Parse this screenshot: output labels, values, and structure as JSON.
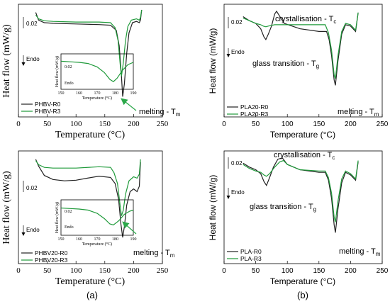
{
  "colors": {
    "series_dark": "#222222",
    "series_green": "#1f9a3a",
    "arrow": "#2ca84a",
    "axis": "#000000"
  },
  "panel_labels": [
    "(a)",
    "(b)"
  ],
  "chart_data": [
    {
      "id": "phbv",
      "type": "line",
      "ylabel": "Heat flow (mW/g)",
      "xlabel": "Temperature (°C)",
      "xlim": [
        0,
        250
      ],
      "xticks": [
        "0",
        "50",
        "100",
        "150",
        "200",
        "250"
      ],
      "scale_label": "0.02",
      "endo_label": "Endo",
      "annotations": [
        "melting - T",
        "m"
      ],
      "legend": "bottom-left",
      "series": [
        {
          "name": "PHBV-R0",
          "color": "#222222",
          "points": [
            [
              30,
              2
            ],
            [
              35,
              8
            ],
            [
              45,
              10
            ],
            [
              60,
              10.5
            ],
            [
              100,
              11
            ],
            [
              140,
              11.5
            ],
            [
              160,
              12
            ],
            [
              170,
              16
            ],
            [
              175,
              28
            ],
            [
              179,
              52
            ],
            [
              181,
              68
            ],
            [
              184,
              58
            ],
            [
              188,
              34
            ],
            [
              192,
              18
            ],
            [
              198,
              10
            ],
            [
              205,
              9
            ],
            [
              210,
              10
            ],
            [
              212,
              8
            ],
            [
              214,
              0
            ]
          ]
        },
        {
          "name": "PHBV-R3",
          "color": "#1f9a3a",
          "points": [
            [
              30,
              4
            ],
            [
              35,
              7
            ],
            [
              45,
              8.5
            ],
            [
              60,
              9
            ],
            [
              100,
              9.5
            ],
            [
              140,
              9.5
            ],
            [
              160,
              10
            ],
            [
              168,
              14
            ],
            [
              173,
              24
            ],
            [
              177,
              44
            ],
            [
              179,
              52
            ],
            [
              182,
              42
            ],
            [
              186,
              24
            ],
            [
              190,
              13
            ],
            [
              196,
              8
            ],
            [
              205,
              7
            ],
            [
              210,
              8
            ],
            [
              212,
              6
            ],
            [
              214,
              0
            ]
          ]
        }
      ],
      "inset": {
        "xlim": [
          150,
          190
        ],
        "xticks": [
          "150",
          "160",
          "170",
          "180",
          "190"
        ],
        "xlabel": "Temperature (°C)",
        "ylabel": "Heat flow (mW/g)",
        "scale_label": "0.02",
        "endo_label": "Endo",
        "series": [
          {
            "name": "PHBV-R3",
            "color": "#1f9a3a",
            "points": [
              [
                150,
                4
              ],
              [
                155,
                4.5
              ],
              [
                160,
                5
              ],
              [
                165,
                6
              ],
              [
                170,
                9
              ],
              [
                174,
                14
              ],
              [
                177,
                20
              ],
              [
                179,
                22
              ],
              [
                181,
                19
              ],
              [
                184,
                12
              ],
              [
                187,
                7
              ],
              [
                190,
                5
              ]
            ]
          }
        ]
      }
    },
    {
      "id": "pla20",
      "type": "line",
      "ylabel": "Heat flow (mW/g)",
      "xlabel": "Temperature (°C)",
      "xlim": [
        0,
        250
      ],
      "xticks": [
        "0",
        "50",
        "100",
        "150",
        "200",
        "250"
      ],
      "scale_label": "0.02",
      "endo_label": "Endo",
      "annotations": [
        "crystallisation - T",
        "c",
        "glass transition - T",
        "g",
        "melting - T",
        "m"
      ],
      "legend": "bottom-left",
      "series": [
        {
          "name": "PLA20-R0",
          "color": "#222222",
          "points": [
            [
              30,
              5
            ],
            [
              40,
              8
            ],
            [
              50,
              10
            ],
            [
              58,
              14
            ],
            [
              63,
              20
            ],
            [
              66,
              22
            ],
            [
              70,
              18
            ],
            [
              75,
              12
            ],
            [
              80,
              3
            ],
            [
              83,
              1
            ],
            [
              87,
              4
            ],
            [
              95,
              10
            ],
            [
              120,
              14
            ],
            [
              150,
              16
            ],
            [
              162,
              16
            ],
            [
              166,
              22
            ],
            [
              170,
              34
            ],
            [
              174,
              52
            ],
            [
              176,
              56
            ],
            [
              180,
              38
            ],
            [
              186,
              18
            ],
            [
              192,
              11
            ],
            [
              200,
              12
            ],
            [
              208,
              16
            ],
            [
              212,
              2
            ]
          ]
        },
        {
          "name": "PLA20-R3",
          "color": "#1f9a3a",
          "points": [
            [
              30,
              6
            ],
            [
              40,
              8
            ],
            [
              50,
              10
            ],
            [
              58,
              11
            ],
            [
              62,
              12
            ],
            [
              66,
              12.5
            ],
            [
              70,
              12
            ],
            [
              80,
              11
            ],
            [
              90,
              11
            ],
            [
              120,
              11
            ],
            [
              150,
              11
            ],
            [
              160,
              11
            ],
            [
              165,
              17
            ],
            [
              170,
              30
            ],
            [
              174,
              48
            ],
            [
              176,
              51
            ],
            [
              180,
              34
            ],
            [
              186,
              16
            ],
            [
              192,
              10
            ],
            [
              200,
              11
            ],
            [
              208,
              15
            ],
            [
              212,
              2
            ]
          ]
        }
      ]
    },
    {
      "id": "phbv20",
      "type": "line",
      "ylabel": "Heat flow (mW/g)",
      "xlabel": "Temperature (°C)",
      "xlim": [
        0,
        250
      ],
      "xticks": [
        "0",
        "50",
        "100",
        "150",
        "200",
        "250"
      ],
      "scale_label": "0.02",
      "endo_label": "Endo",
      "annotations": [
        "melting - T",
        "m"
      ],
      "legend": "bottom-left",
      "series": [
        {
          "name": "PHBV20-R0",
          "color": "#222222",
          "points": [
            [
              30,
              2
            ],
            [
              35,
              7
            ],
            [
              45,
              14
            ],
            [
              60,
              17
            ],
            [
              80,
              18
            ],
            [
              100,
              17.5
            ],
            [
              120,
              16
            ],
            [
              140,
              14.5
            ],
            [
              160,
              15.5
            ],
            [
              168,
              20
            ],
            [
              174,
              32
            ],
            [
              178,
              50
            ],
            [
              181,
              60
            ],
            [
              184,
              52
            ],
            [
              188,
              36
            ],
            [
              194,
              26
            ],
            [
              200,
              24
            ],
            [
              206,
              26
            ],
            [
              210,
              22
            ],
            [
              212,
              4
            ]
          ]
        },
        {
          "name": "PHBV20-R3",
          "color": "#1f9a3a",
          "points": [
            [
              30,
              3
            ],
            [
              35,
              6
            ],
            [
              45,
              8
            ],
            [
              60,
              8.5
            ],
            [
              100,
              8.5
            ],
            [
              140,
              7.5
            ],
            [
              160,
              8
            ],
            [
              166,
              12
            ],
            [
              172,
              20
            ],
            [
              176,
              34
            ],
            [
              179,
              44
            ],
            [
              182,
              40
            ],
            [
              186,
              28
            ],
            [
              192,
              18
            ],
            [
              200,
              15
            ],
            [
              206,
              16
            ],
            [
              210,
              13
            ],
            [
              212,
              2
            ]
          ]
        }
      ],
      "inset": {
        "xlim": [
          150,
          190
        ],
        "xticks": [
          "150",
          "160",
          "170",
          "180",
          "190"
        ],
        "xlabel": "Temperature (°C)",
        "ylabel": "Heat flow (mW/g)",
        "scale_label": "0.02",
        "endo_label": "Endo",
        "series": [
          {
            "name": "PHBV20-R3",
            "color": "#1f9a3a",
            "points": [
              [
                150,
                5
              ],
              [
                155,
                5.5
              ],
              [
                160,
                6
              ],
              [
                165,
                7
              ],
              [
                170,
                10
              ],
              [
                174,
                15
              ],
              [
                177,
                20
              ],
              [
                179,
                21
              ],
              [
                182,
                17
              ],
              [
                185,
                11
              ],
              [
                188,
                8
              ],
              [
                190,
                7
              ]
            ]
          }
        ]
      }
    },
    {
      "id": "pla",
      "type": "line",
      "ylabel": "Heat flow (mW/g)",
      "xlabel": "Temperature (°C)",
      "xlim": [
        0,
        250
      ],
      "xticks": [
        "0",
        "50",
        "100",
        "150",
        "200",
        "250"
      ],
      "scale_label": "0.02",
      "endo_label": "Endo",
      "annotations": [
        "crystallisation - T",
        "c",
        "glass transition - T",
        "g",
        "melting - T",
        "m"
      ],
      "legend": "bottom-left",
      "series": [
        {
          "name": "PLA-R0",
          "color": "#222222",
          "points": [
            [
              30,
              5
            ],
            [
              40,
              8
            ],
            [
              50,
              10
            ],
            [
              58,
              13
            ],
            [
              63,
              19
            ],
            [
              67,
              22
            ],
            [
              72,
              16
            ],
            [
              78,
              8
            ],
            [
              85,
              2
            ],
            [
              92,
              1
            ],
            [
              100,
              6
            ],
            [
              120,
              10
            ],
            [
              150,
              12
            ],
            [
              160,
              12
            ],
            [
              165,
              18
            ],
            [
              170,
              32
            ],
            [
              174,
              52
            ],
            [
              176,
              58
            ],
            [
              180,
              40
            ],
            [
              186,
              20
            ],
            [
              192,
              12
            ],
            [
              200,
              14
            ],
            [
              208,
              18
            ],
            [
              212,
              4
            ]
          ]
        },
        {
          "name": "PLA-R3",
          "color": "#1f9a3a",
          "points": [
            [
              30,
              6
            ],
            [
              40,
              9
            ],
            [
              50,
              11
            ],
            [
              58,
              12
            ],
            [
              63,
              14
            ],
            [
              67,
              15
            ],
            [
              72,
              13
            ],
            [
              80,
              8
            ],
            [
              88,
              4
            ],
            [
              94,
              3
            ],
            [
              100,
              6
            ],
            [
              120,
              10
            ],
            [
              150,
              11
            ],
            [
              160,
              11
            ],
            [
              165,
              16
            ],
            [
              170,
              28
            ],
            [
              174,
              46
            ],
            [
              176,
              50
            ],
            [
              180,
              34
            ],
            [
              186,
              17
            ],
            [
              192,
              11
            ],
            [
              200,
              13
            ],
            [
              208,
              17
            ],
            [
              212,
              3
            ]
          ]
        }
      ]
    }
  ]
}
